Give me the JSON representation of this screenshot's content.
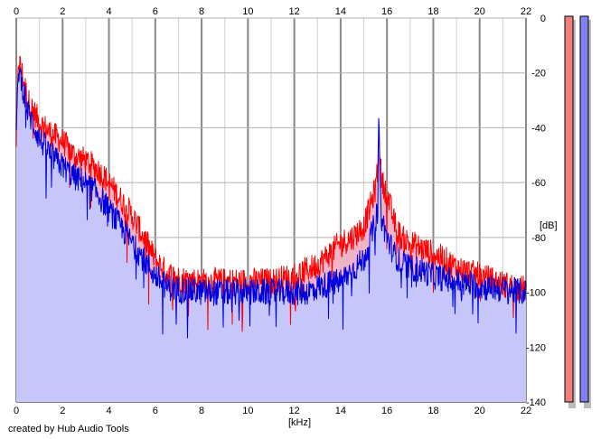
{
  "chart_data": {
    "type": "area",
    "xlabel": "[kHz]",
    "ylabel": "[dB]",
    "xlim": [
      0,
      22
    ],
    "ylim": [
      -140,
      0
    ],
    "x_ticks": [
      0,
      2,
      4,
      6,
      8,
      10,
      12,
      14,
      16,
      18,
      20,
      22
    ],
    "y_ticks": [
      0,
      -20,
      -40,
      -60,
      -80,
      -100,
      -120,
      -140
    ],
    "grid": true,
    "colors": {
      "fill": "#c6c6fa",
      "fill_red": "#f0b4c8",
      "red": "#ff0000",
      "blue": "#0000dd",
      "grid_major": "#888888",
      "grid_minor": "#d0d0d0"
    },
    "series": [
      {
        "color": "#ff0000",
        "x": [
          0,
          0.1,
          0.25,
          0.5,
          1,
          1.5,
          2,
          2.5,
          3,
          3.5,
          4,
          4.5,
          5,
          5.5,
          6,
          6.5,
          7,
          8,
          9,
          10,
          11,
          12,
          12.5,
          13,
          13.5,
          14,
          14.5,
          15,
          15.3,
          15.5,
          15.6,
          15.65,
          15.7,
          15.75,
          15.8,
          16,
          16.3,
          16.6,
          17,
          17.5,
          18,
          18.5,
          19,
          20,
          21,
          22
        ],
        "y": [
          -45,
          -15,
          -20,
          -30,
          -38,
          -42,
          -45,
          -50,
          -52,
          -55,
          -60,
          -66,
          -72,
          -80,
          -88,
          -93,
          -95,
          -96,
          -96,
          -96,
          -96,
          -94,
          -92,
          -90,
          -86,
          -82,
          -80,
          -76,
          -68,
          -62,
          -55,
          -40,
          -48,
          -58,
          -60,
          -64,
          -74,
          -80,
          -82,
          -84,
          -86,
          -88,
          -91,
          -94,
          -97,
          -99
        ]
      },
      {
        "color": "#0000dd",
        "x": [
          0,
          0.1,
          0.25,
          0.5,
          1,
          1.5,
          2,
          2.5,
          3,
          3.5,
          4,
          4.5,
          5,
          5.5,
          6,
          6.5,
          7,
          8,
          9,
          10,
          11,
          12,
          12.5,
          13,
          13.5,
          14,
          14.5,
          15,
          15.3,
          15.5,
          15.6,
          15.65,
          15.7,
          15.75,
          15.8,
          16,
          16.3,
          16.6,
          17,
          17.5,
          18,
          18.5,
          19,
          20,
          21,
          22
        ],
        "y": [
          -42,
          -18,
          -24,
          -34,
          -44,
          -50,
          -54,
          -58,
          -60,
          -64,
          -70,
          -76,
          -82,
          -88,
          -94,
          -98,
          -99,
          -100,
          -100,
          -100,
          -100,
          -100,
          -100,
          -98,
          -97,
          -96,
          -92,
          -88,
          -80,
          -74,
          -70,
          -32,
          -62,
          -72,
          -74,
          -80,
          -86,
          -89,
          -91,
          -92,
          -94,
          -95,
          -96,
          -98,
          -99,
          -100
        ]
      }
    ]
  },
  "axis": {
    "x_unit": "[kHz]",
    "y_unit": "[dB]"
  },
  "meters": {
    "left_color": "#f08080",
    "right_color": "#8080ee"
  },
  "credit": "created by Hub Audio Tools"
}
